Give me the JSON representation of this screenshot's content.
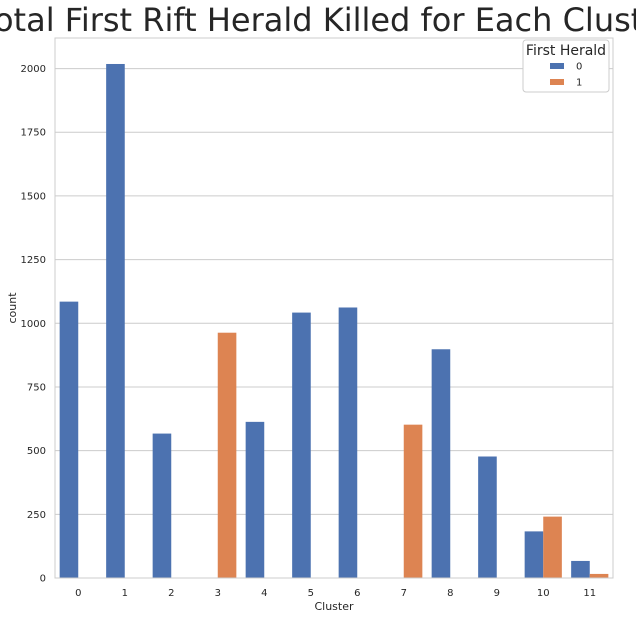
{
  "chart_data": {
    "type": "bar",
    "title": "Total First Rift Herald Killed for Each Cluster",
    "xlabel": "Cluster",
    "ylabel": "count",
    "categories": [
      "0",
      "1",
      "2",
      "3",
      "4",
      "5",
      "6",
      "7",
      "8",
      "9",
      "10",
      "11"
    ],
    "ylim": [
      0,
      2120
    ],
    "yticks": [
      0,
      250,
      500,
      750,
      1000,
      1250,
      1500,
      1750,
      2000
    ],
    "grid": true,
    "legend": {
      "title": "First Herald",
      "placement": "top-right"
    },
    "series": [
      {
        "name": "0",
        "color": "#4c72b0",
        "values": [
          1085,
          2018,
          567,
          null,
          613,
          1042,
          1062,
          null,
          898,
          477,
          183,
          67
        ]
      },
      {
        "name": "1",
        "color": "#dd8452",
        "values": [
          null,
          null,
          null,
          963,
          null,
          null,
          null,
          602,
          null,
          null,
          241,
          16
        ]
      }
    ]
  }
}
